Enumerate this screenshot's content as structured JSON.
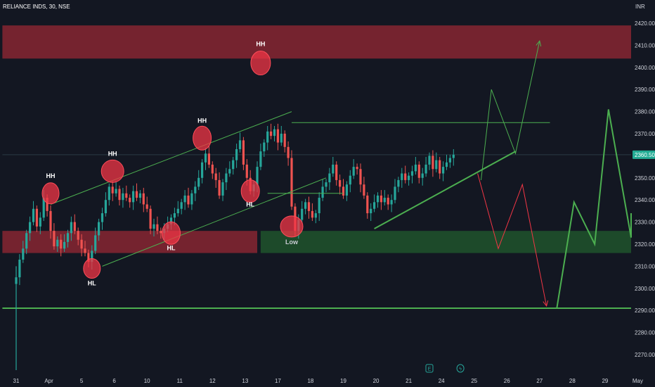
{
  "chart_data": {
    "type": "candlestick",
    "title": "RELIANCE INDS, 30, NSE",
    "currency": "INR",
    "last_price": "2360.50",
    "ylim": [
      2262,
      2431
    ],
    "y_ticks": [
      "2420.00",
      "2410.00",
      "2400.00",
      "2390.00",
      "2380.00",
      "2370.00",
      "2360.00",
      "2350.00",
      "2340.00",
      "2330.00",
      "2320.00",
      "2310.00",
      "2300.00",
      "2290.00",
      "2280.00",
      "2270.00"
    ],
    "x_ticks": [
      {
        "label": "31",
        "i": 0
      },
      {
        "label": "Apr",
        "i": 9.5
      },
      {
        "label": "5",
        "i": 19
      },
      {
        "label": "6",
        "i": 28.5
      },
      {
        "label": "10",
        "i": 38
      },
      {
        "label": "11",
        "i": 47.5
      },
      {
        "label": "12",
        "i": 57
      },
      {
        "label": "13",
        "i": 66.5
      },
      {
        "label": "17",
        "i": 76
      },
      {
        "label": "18",
        "i": 85.5
      },
      {
        "label": "19",
        "i": 95
      },
      {
        "label": "20",
        "i": 104.5
      },
      {
        "label": "21",
        "i": 114
      },
      {
        "label": "24",
        "i": 123.5
      },
      {
        "label": "25",
        "i": 133
      },
      {
        "label": "26",
        "i": 142.5
      },
      {
        "label": "27",
        "i": 152
      },
      {
        "label": "28",
        "i": 161.5
      },
      {
        "label": "29",
        "i": 171
      },
      {
        "label": "May",
        "i": 180.5
      }
    ],
    "zones": [
      {
        "name": "resistance-zone",
        "from": 2404,
        "to": 2419,
        "i_start": -4,
        "i_end": 190,
        "color": "#7a2430"
      },
      {
        "name": "support-zone-red",
        "from": 2316,
        "to": 2326,
        "i_start": -4,
        "i_end": 70,
        "color": "#7a2430"
      },
      {
        "name": "support-zone-green",
        "from": 2316,
        "to": 2326,
        "i_start": 71,
        "i_end": 190,
        "color": "#1e4d2b"
      }
    ],
    "horizontal_lines": [
      {
        "name": "support-line",
        "y": 2291,
        "i_start": -4,
        "i_end": 190,
        "color": "#4caf50"
      },
      {
        "name": "last-price-line",
        "y": 2360.5,
        "i_start": -4,
        "i_end": 190,
        "color": "#2a3a44"
      }
    ],
    "trend_lines": [
      {
        "name": "channel-top",
        "i1": 10,
        "y1": 2338,
        "i2": 80,
        "y2": 2380,
        "color": "#4caf50",
        "width": 1
      },
      {
        "name": "channel-bottom",
        "i1": 25,
        "y1": 2310,
        "i2": 90,
        "y2": 2350,
        "color": "#4caf50",
        "width": 1
      },
      {
        "name": "resistance-top",
        "i1": 80,
        "y1": 2375,
        "i2": 155,
        "y2": 2375,
        "color": "#4caf50",
        "width": 1
      },
      {
        "name": "neckline",
        "i1": 73,
        "y1": 2343,
        "i2": 95,
        "y2": 2343,
        "color": "#4caf50",
        "width": 1
      },
      {
        "name": "rising-support",
        "i1": 104,
        "y1": 2327,
        "i2": 145,
        "y2": 2362,
        "color": "#4caf50",
        "width": 2
      }
    ],
    "projections": [
      {
        "name": "bull-path",
        "color": "#4caf50",
        "width": 1,
        "points": [
          [
            135,
            2349
          ],
          [
            138,
            2390
          ],
          [
            145,
            2361
          ],
          [
            152,
            2412
          ]
        ],
        "arrow": true
      },
      {
        "name": "bear-path",
        "color": "#f23645",
        "width": 1,
        "points": [
          [
            134,
            2352
          ],
          [
            140,
            2318
          ],
          [
            147,
            2347
          ],
          [
            154,
            2292
          ]
        ],
        "arrow": true
      },
      {
        "name": "long-path",
        "color": "#4caf50",
        "width": 2,
        "points": [
          [
            157,
            2291
          ],
          [
            162,
            2339
          ],
          [
            168,
            2320
          ],
          [
            172,
            2381
          ],
          [
            181,
            2323
          ],
          [
            183,
            2334
          ]
        ],
        "arrow": false
      }
    ],
    "circles": [
      {
        "name": "hh-1",
        "i": 10,
        "y": 2343,
        "rx": 12,
        "ry": 15,
        "label": "HH",
        "label_dy": -22
      },
      {
        "name": "hl-1",
        "i": 22,
        "y": 2309,
        "rx": 12,
        "ry": 14,
        "label": "HL",
        "label_dy": 24
      },
      {
        "name": "hh-2",
        "i": 28,
        "y": 2353,
        "rx": 16,
        "ry": 16,
        "label": "HH",
        "label_dy": -22
      },
      {
        "name": "hl-2",
        "i": 45,
        "y": 2325,
        "rx": 13,
        "ry": 16,
        "label": "HL",
        "label_dy": 24
      },
      {
        "name": "hh-3",
        "i": 54,
        "y": 2368,
        "rx": 13,
        "ry": 17,
        "label": "HH",
        "label_dy": -22
      },
      {
        "name": "hl-3",
        "i": 68,
        "y": 2344,
        "rx": 13,
        "ry": 16,
        "label": "HL",
        "label_dy": 22
      },
      {
        "name": "hh-4",
        "i": 71,
        "y": 2402,
        "rx": 14,
        "ry": 17,
        "label": "HH",
        "label_dy": -24
      },
      {
        "name": "low",
        "i": 80,
        "y": 2328,
        "rx": 16,
        "ry": 15,
        "label": "Low",
        "label_dy": 25
      }
    ],
    "markers": [
      {
        "name": "earnings-icon",
        "i": 120,
        "glyph": "E"
      },
      {
        "name": "dividend-icon",
        "i": 129,
        "glyph": "ϟ"
      }
    ],
    "candles_close": [
      2305,
      2313,
      2318,
      2325,
      2330,
      2336,
      2328,
      2332,
      2341,
      2335,
      2326,
      2319,
      2322,
      2318,
      2321,
      2325,
      2330,
      2326,
      2322,
      2318,
      2316,
      2312,
      2317,
      2324,
      2330,
      2334,
      2340,
      2346,
      2343,
      2345,
      2340,
      2343,
      2341,
      2339,
      2344,
      2341,
      2343,
      2338,
      2336,
      2327,
      2329,
      2326,
      2325,
      2327,
      2329,
      2332,
      2334,
      2336,
      2339,
      2342,
      2338,
      2343,
      2346,
      2350,
      2357,
      2361,
      2356,
      2352,
      2349,
      2342,
      2348,
      2352,
      2354,
      2358,
      2363,
      2367,
      2356,
      2350,
      2344,
      2347,
      2355,
      2362,
      2366,
      2371,
      2369,
      2372,
      2366,
      2370,
      2364,
      2359,
      2337,
      2326,
      2331,
      2336,
      2339,
      2335,
      2332,
      2334,
      2341,
      2346,
      2348,
      2352,
      2356,
      2349,
      2346,
      2342,
      2347,
      2351,
      2355,
      2354,
      2347,
      2342,
      2334,
      2336,
      2339,
      2342,
      2339,
      2341,
      2338,
      2340,
      2346,
      2349,
      2352,
      2349,
      2351,
      2353,
      2356,
      2350,
      2352,
      2356,
      2360,
      2354,
      2358,
      2352,
      2355,
      2357,
      2359,
      2360.5
    ]
  }
}
